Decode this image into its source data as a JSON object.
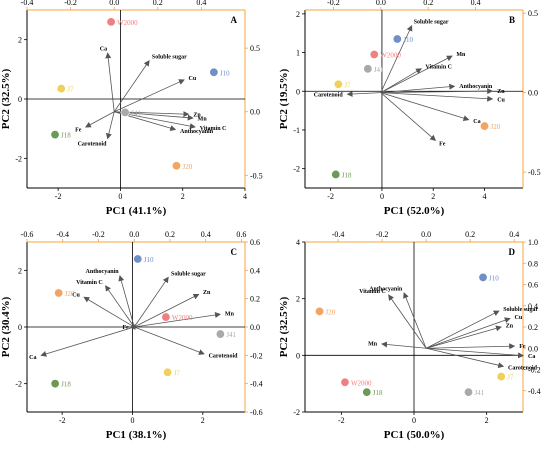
{
  "figure": {
    "panel_count": 4,
    "top_axis_color": "#f5a442",
    "right_axis_color": "#f5a442",
    "arrow_color": "#555555"
  },
  "chart_data": [
    {
      "id": "A",
      "type": "scatter",
      "panel_label": "A",
      "xlabel": "PC1 (41.1%)",
      "ylabel": "PC2 (32.5%)",
      "bottom_axis": {
        "range": [
          -3.0,
          4.0
        ],
        "ticks": [
          -2,
          0,
          2,
          4
        ]
      },
      "left_axis": {
        "range": [
          -3.0,
          3.0
        ],
        "ticks": [
          -2,
          0,
          2
        ]
      },
      "top_axis": {
        "range": [
          -0.4,
          0.6
        ],
        "ticks": [
          -0.4,
          -0.2,
          0.0,
          0.2,
          0.4
        ]
      },
      "right_axis": {
        "range": [
          -0.6,
          0.8
        ],
        "ticks": [
          0.5,
          0.0,
          -0.5
        ],
        "tick_labels": [
          "0.5",
          "0.0",
          "-0.5"
        ]
      },
      "scores": [
        {
          "name": "W2000",
          "x": -0.3,
          "y": 2.6,
          "color": "#f08080"
        },
        {
          "name": "J10",
          "x": 3.0,
          "y": 0.9,
          "color": "#6f8fc7"
        },
        {
          "name": "J7",
          "x": -1.9,
          "y": 0.35,
          "color": "#f0cf5a"
        },
        {
          "name": "J41",
          "x": 0.15,
          "y": -0.45,
          "color": "#a9a9a9"
        },
        {
          "name": "J18",
          "x": -2.1,
          "y": -1.2,
          "color": "#6a9a55"
        },
        {
          "name": "J20",
          "x": 1.8,
          "y": -2.25,
          "color": "#f4a460"
        }
      ],
      "loadings": [
        {
          "name": "Ca",
          "x": -0.03,
          "y": 0.46
        },
        {
          "name": "Soluble sugar",
          "x": 0.16,
          "y": 0.4
        },
        {
          "name": "Cu",
          "x": 0.32,
          "y": 0.25
        },
        {
          "name": "Zn",
          "x": 0.34,
          "y": -0.02
        },
        {
          "name": "Mn",
          "x": 0.36,
          "y": -0.05
        },
        {
          "name": "Vitamin C",
          "x": 0.37,
          "y": -0.12
        },
        {
          "name": "Anthocyanin",
          "x": 0.28,
          "y": -0.14
        },
        {
          "name": "Fe",
          "x": -0.13,
          "y": -0.12
        },
        {
          "name": "Carotenoid",
          "x": -0.03,
          "y": -0.21
        }
      ]
    },
    {
      "id": "B",
      "type": "scatter",
      "panel_label": "B",
      "xlabel": "PC1 (52.0%)",
      "ylabel": "PC2 (19.5%)",
      "bottom_axis": {
        "range": [
          -3.0,
          5.5
        ],
        "ticks": [
          -2,
          0,
          2,
          4
        ]
      },
      "left_axis": {
        "range": [
          -2.5,
          2.1
        ],
        "ticks": [
          -2,
          -1,
          0,
          1,
          2
        ]
      },
      "top_axis": {
        "range": [
          -0.32,
          0.6
        ],
        "ticks": [
          -0.2,
          0.0,
          0.2,
          0.4
        ]
      },
      "right_axis": {
        "range": [
          -0.6,
          0.52
        ],
        "ticks": [
          0.5,
          0.0,
          -0.5
        ],
        "tick_labels": [
          "0.5",
          "0.0",
          "-0.5"
        ]
      },
      "scores": [
        {
          "name": "J10",
          "x": 0.6,
          "y": 1.35,
          "color": "#6f8fc7"
        },
        {
          "name": "W2000",
          "x": -0.3,
          "y": 0.95,
          "color": "#f08080"
        },
        {
          "name": "J41",
          "x": -0.55,
          "y": 0.58,
          "color": "#a9a9a9"
        },
        {
          "name": "J7",
          "x": -1.7,
          "y": 0.18,
          "color": "#f0cf5a"
        },
        {
          "name": "J20",
          "x": 4.0,
          "y": -0.9,
          "color": "#f4a460"
        },
        {
          "name": "J18",
          "x": -1.8,
          "y": -2.15,
          "color": "#6a9a55"
        }
      ],
      "loadings": [
        {
          "name": "Soluble sugar",
          "x": 0.13,
          "y": 0.42
        },
        {
          "name": "Mn",
          "x": 0.3,
          "y": 0.23
        },
        {
          "name": "Vitamin C",
          "x": 0.17,
          "y": 0.15
        },
        {
          "name": "Anthocyanin",
          "x": 0.31,
          "y": 0.04
        },
        {
          "name": "Zn",
          "x": 0.47,
          "y": 0.01
        },
        {
          "name": "Cu",
          "x": 0.47,
          "y": -0.04
        },
        {
          "name": "Carotenoid",
          "x": -0.14,
          "y": -0.01
        },
        {
          "name": "Ca",
          "x": 0.37,
          "y": -0.17
        },
        {
          "name": "Fe",
          "x": 0.23,
          "y": -0.3
        }
      ]
    },
    {
      "id": "C",
      "type": "scatter",
      "panel_label": "C",
      "xlabel": "PC1 (38.1%)",
      "ylabel": "PC2 (30.4%)",
      "bottom_axis": {
        "range": [
          -3.0,
          3.2
        ],
        "ticks": [
          -2,
          0,
          2
        ]
      },
      "left_axis": {
        "range": [
          -3.0,
          3.0
        ],
        "ticks": [
          -2,
          0,
          2
        ]
      },
      "top_axis": {
        "range": [
          -0.6,
          0.62
        ],
        "ticks": [
          -0.6,
          -0.4,
          -0.2,
          0.0,
          0.2,
          0.4,
          0.6
        ]
      },
      "right_axis": {
        "range": [
          -0.6,
          0.6
        ],
        "ticks": [
          0.6,
          0.4,
          0.2,
          0.0,
          -0.2,
          -0.4,
          -0.6
        ],
        "tick_labels": [
          "0.6",
          "0.4",
          "0.2",
          "0.0",
          "-0.2",
          "-0.4",
          "-0.6"
        ]
      },
      "scores": [
        {
          "name": "J10",
          "x": 0.15,
          "y": 2.4,
          "color": "#6f8fc7"
        },
        {
          "name": "J20",
          "x": -2.1,
          "y": 1.2,
          "color": "#f4a460"
        },
        {
          "name": "W2000",
          "x": 0.95,
          "y": 0.35,
          "color": "#f08080"
        },
        {
          "name": "J41",
          "x": 2.5,
          "y": -0.25,
          "color": "#a9a9a9"
        },
        {
          "name": "J7",
          "x": 1.0,
          "y": -1.6,
          "color": "#f0cf5a"
        },
        {
          "name": "J18",
          "x": -2.2,
          "y": -2.0,
          "color": "#6a9a55"
        }
      ],
      "loadings": [
        {
          "name": "Anthocyanin",
          "x": -0.08,
          "y": 0.36
        },
        {
          "name": "Soluble sugar",
          "x": 0.19,
          "y": 0.35
        },
        {
          "name": "Vitamin C",
          "x": -0.16,
          "y": 0.29
        },
        {
          "name": "Zn",
          "x": 0.36,
          "y": 0.23
        },
        {
          "name": "Cu",
          "x": -0.28,
          "y": 0.21
        },
        {
          "name": "Mn",
          "x": 0.48,
          "y": 0.09
        },
        {
          "name": "Fe",
          "x": -0.02,
          "y": 0.0
        },
        {
          "name": "Ca",
          "x": -0.52,
          "y": -0.2
        },
        {
          "name": "Carotenoid",
          "x": 0.39,
          "y": -0.19
        }
      ]
    },
    {
      "id": "D",
      "type": "scatter",
      "panel_label": "D",
      "xlabel": "PC1 (50.0%)",
      "ylabel": "PC2 (32.5%)",
      "bottom_axis": {
        "range": [
          -3.0,
          3.0
        ],
        "ticks": [
          -2,
          0,
          2
        ]
      },
      "left_axis": {
        "range": [
          -2.0,
          4.0
        ],
        "ticks": [
          -2,
          0,
          2,
          4
        ]
      },
      "top_axis": {
        "range": [
          -0.55,
          0.44
        ],
        "ticks": [
          -0.4,
          -0.2,
          0.0,
          0.2,
          0.4
        ]
      },
      "right_axis": {
        "range": [
          -0.6,
          1.0
        ],
        "ticks": [
          1.0,
          0.8,
          0.6,
          0.4,
          0.2,
          0.0,
          -0.2,
          -0.4
        ],
        "tick_labels": [
          "1.0",
          "0.8",
          "0.6",
          "0.4",
          "0.2",
          "0.0",
          "-0.2",
          "-0.4"
        ]
      },
      "scores": [
        {
          "name": "J10",
          "x": 1.9,
          "y": 2.75,
          "color": "#6f8fc7"
        },
        {
          "name": "J20",
          "x": -2.6,
          "y": 1.55,
          "color": "#f4a460"
        },
        {
          "name": "J7",
          "x": 2.4,
          "y": -0.75,
          "color": "#f0cf5a"
        },
        {
          "name": "W2000",
          "x": -1.9,
          "y": -0.95,
          "color": "#f08080"
        },
        {
          "name": "J18",
          "x": -1.3,
          "y": -1.3,
          "color": "#6a9a55"
        },
        {
          "name": "J41",
          "x": 1.5,
          "y": -1.3,
          "color": "#a9a9a9"
        }
      ],
      "loadings": [
        {
          "name": "Vitamin C",
          "x": -0.17,
          "y": 0.5
        },
        {
          "name": "Anthocyanin",
          "x": -0.1,
          "y": 0.52
        },
        {
          "name": "Soluble sugar",
          "x": 0.33,
          "y": 0.35
        },
        {
          "name": "Cu",
          "x": 0.38,
          "y": 0.28
        },
        {
          "name": "Zn",
          "x": 0.34,
          "y": 0.2
        },
        {
          "name": "Mn",
          "x": -0.2,
          "y": 0.04
        },
        {
          "name": "Fe",
          "x": 0.4,
          "y": 0.02
        },
        {
          "name": "Ca",
          "x": 0.44,
          "y": -0.07
        },
        {
          "name": "Carotenoid",
          "x": 0.35,
          "y": -0.17
        }
      ]
    }
  ]
}
